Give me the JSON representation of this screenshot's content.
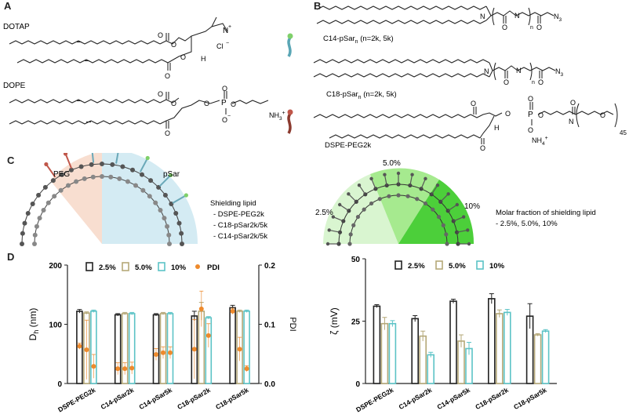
{
  "panels": {
    "A": {
      "letter": "A",
      "lipid1": "DOTAP",
      "lipid2": "DOPE",
      "chem": {
        "Nplus": "N",
        "plus": "+",
        "H": "H",
        "Cl": "Cl",
        "minus": "−",
        "O": "O",
        "P": "P",
        "Ominus": "O",
        "NH3": "NH",
        "sub3": "3",
        "plus2": "+"
      }
    },
    "B": {
      "letter": "B",
      "lipid1": "C14-pSar",
      "lipid1_sub": "n",
      "lipid1_suffix": " (n=2k, 5k)",
      "lipid2": "C18-pSar",
      "lipid2_sub": "n",
      "lipid2_suffix": " (n=2k, 5k)",
      "lipid3": "DSPE-PEG2k",
      "chem": {
        "N3": "N",
        "sub3": "3",
        "n": "n",
        "NH4": "NH",
        "sub4": "4",
        "plus": "+",
        "H": "H",
        "sub45": "45",
        "O": "O",
        "P": "P",
        "N": "N"
      }
    },
    "C": {
      "letter": "C",
      "left_label_peg": "PEG",
      "left_label_psar": "pSar",
      "shielding_title": "Shielding lipid",
      "shielding_items": [
        "- DSPE-PEG2k",
        "- C18-pSar2k/5k",
        "- C14-pSar2k/5k"
      ],
      "right_labels": [
        "2.5%",
        "5.0%",
        "10%"
      ],
      "molar_title": "Molar fraction of shielding lipid",
      "molar_items": "- 2.5%, 5.0%, 10%"
    },
    "D": {
      "letter": "D"
    }
  },
  "colors": {
    "black": "#222222",
    "tan": "#b5a878",
    "teal": "#5cc3c6",
    "orange": "#ee8a2c",
    "peg": "#f2c9b4",
    "psar": "#bfe2ec",
    "green": "#4ccf3a"
  },
  "chart_data": [
    {
      "type": "bar",
      "title": "",
      "ylabel": "D",
      "ylabel_sub": "h",
      "ylabel_suffix": " (nm)",
      "y2label": "PDI",
      "ylim": [
        0,
        200
      ],
      "yticks": [
        "0",
        "100",
        "200"
      ],
      "y2lim": [
        0,
        0.2
      ],
      "y2ticks": [
        "0.0",
        "0.1",
        "0.2"
      ],
      "categories": [
        "DSPE-PEG2k",
        "C14-pSar2k",
        "C14-pSar5k",
        "C18-pSar2k",
        "C18-pSar5k"
      ],
      "legend": [
        "2.5%",
        "5.0%",
        "10%",
        "PDI"
      ],
      "series": [
        {
          "name": "2.5%",
          "values": [
            122,
            116,
            116,
            114,
            128
          ],
          "errors": [
            3,
            2,
            2,
            8,
            4
          ]
        },
        {
          "name": "5.0%",
          "values": [
            119,
            118,
            118,
            122,
            122
          ],
          "errors": [
            2,
            2,
            2,
            15,
            2
          ]
        },
        {
          "name": "10%",
          "values": [
            122,
            118,
            118,
            111,
            122
          ],
          "errors": [
            2,
            2,
            2,
            2,
            2
          ]
        }
      ],
      "pdi": {
        "name": "PDI",
        "values": [
          [
            0.063,
            0.057,
            0.029
          ],
          [
            0.025,
            0.025,
            0.026
          ],
          [
            0.049,
            0.052,
            0.052
          ],
          [
            0.058,
            0.126,
            0.081
          ],
          [
            0.122,
            0.058,
            0.025
          ]
        ],
        "errors": [
          [
            0.005,
            0.05,
            0.02
          ],
          [
            0.01,
            0.01,
            0.01
          ],
          [
            0.01,
            0.01,
            0.01
          ],
          [
            0.05,
            0.03,
            0.02
          ],
          [
            0.005,
            0.02,
            0.005
          ]
        ]
      }
    },
    {
      "type": "bar",
      "title": "",
      "ylabel": "ζ (mV)",
      "ylim": [
        0,
        50
      ],
      "yticks": [
        "0",
        "25",
        "50"
      ],
      "categories": [
        "DSPE-PEG2k",
        "C14-pSar2k",
        "C14-pSar5k",
        "C18-pSar2k",
        "C18-pSar5k"
      ],
      "legend": [
        "2.5%",
        "5.0%",
        "10%"
      ],
      "series": [
        {
          "name": "2.5%",
          "values": [
            31,
            26,
            33,
            34,
            27
          ],
          "errors": [
            0.6,
            1.2,
            0.8,
            2,
            5
          ]
        },
        {
          "name": "5.0%",
          "values": [
            24,
            19,
            17,
            28,
            19.5
          ],
          "errors": [
            2.5,
            2,
            2.5,
            1.5,
            0.5
          ]
        },
        {
          "name": "10%",
          "values": [
            24,
            11.5,
            14,
            28.5,
            21
          ],
          "errors": [
            1.2,
            1,
            2.5,
            1.2,
            0.6
          ]
        }
      ]
    }
  ]
}
